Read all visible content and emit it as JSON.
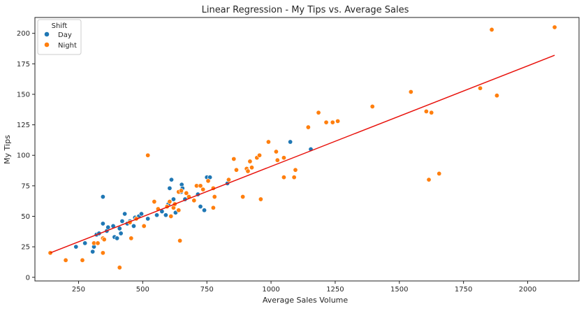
{
  "chart_data": {
    "type": "scatter",
    "title": "Linear Regression - My Tips vs. Average Sales",
    "xlabel": "Average Sales Volume",
    "ylabel": "My Tips",
    "xlim": [
      80,
      2200
    ],
    "ylim": [
      -3,
      213
    ],
    "xticks": [
      250,
      500,
      750,
      1000,
      1250,
      1500,
      1750,
      2000
    ],
    "yticks": [
      0,
      25,
      50,
      75,
      100,
      125,
      150,
      175,
      200
    ],
    "grid": false,
    "legend": {
      "title": "Shift",
      "position": "top-left"
    },
    "series": [
      {
        "name": "Day",
        "color": "#1f77b4",
        "points": [
          [
            240,
            25
          ],
          [
            275,
            28
          ],
          [
            305,
            21
          ],
          [
            310,
            25
          ],
          [
            320,
            35
          ],
          [
            330,
            36
          ],
          [
            345,
            66
          ],
          [
            345,
            44
          ],
          [
            360,
            38
          ],
          [
            365,
            41
          ],
          [
            385,
            42
          ],
          [
            390,
            33
          ],
          [
            400,
            32
          ],
          [
            410,
            40
          ],
          [
            415,
            36
          ],
          [
            420,
            46
          ],
          [
            430,
            52
          ],
          [
            440,
            44
          ],
          [
            450,
            46
          ],
          [
            465,
            42
          ],
          [
            470,
            49
          ],
          [
            485,
            50
          ],
          [
            495,
            52
          ],
          [
            520,
            48
          ],
          [
            555,
            51
          ],
          [
            575,
            54
          ],
          [
            590,
            51
          ],
          [
            600,
            60
          ],
          [
            605,
            73
          ],
          [
            612,
            80
          ],
          [
            620,
            64
          ],
          [
            628,
            53
          ],
          [
            640,
            55
          ],
          [
            650,
            70
          ],
          [
            652,
            76
          ],
          [
            655,
            73
          ],
          [
            665,
            64
          ],
          [
            715,
            68
          ],
          [
            725,
            58
          ],
          [
            740,
            55
          ],
          [
            750,
            82
          ],
          [
            762,
            82
          ],
          [
            830,
            77
          ],
          [
            1075,
            111
          ],
          [
            1155,
            105
          ]
        ]
      },
      {
        "name": "Night",
        "color": "#ff7f0e",
        "points": [
          [
            140,
            20
          ],
          [
            200,
            14
          ],
          [
            265,
            14
          ],
          [
            310,
            28
          ],
          [
            325,
            28
          ],
          [
            345,
            32
          ],
          [
            345,
            20
          ],
          [
            350,
            31
          ],
          [
            410,
            8
          ],
          [
            450,
            45
          ],
          [
            455,
            32
          ],
          [
            475,
            48
          ],
          [
            505,
            42
          ],
          [
            520,
            100
          ],
          [
            545,
            62
          ],
          [
            560,
            56
          ],
          [
            595,
            58
          ],
          [
            605,
            62
          ],
          [
            610,
            50
          ],
          [
            620,
            57
          ],
          [
            625,
            60
          ],
          [
            640,
            55
          ],
          [
            640,
            70
          ],
          [
            645,
            30
          ],
          [
            650,
            71
          ],
          [
            670,
            69
          ],
          [
            680,
            66
          ],
          [
            700,
            63
          ],
          [
            710,
            75
          ],
          [
            725,
            75
          ],
          [
            735,
            72
          ],
          [
            755,
            79
          ],
          [
            775,
            73
          ],
          [
            775,
            57
          ],
          [
            780,
            66
          ],
          [
            835,
            80
          ],
          [
            855,
            97
          ],
          [
            865,
            88
          ],
          [
            890,
            66
          ],
          [
            905,
            89
          ],
          [
            910,
            87
          ],
          [
            918,
            95
          ],
          [
            925,
            90
          ],
          [
            945,
            98
          ],
          [
            955,
            100
          ],
          [
            960,
            64
          ],
          [
            990,
            111
          ],
          [
            1020,
            103
          ],
          [
            1025,
            96
          ],
          [
            1050,
            98
          ],
          [
            1050,
            82
          ],
          [
            1090,
            82
          ],
          [
            1095,
            88
          ],
          [
            1145,
            123
          ],
          [
            1185,
            135
          ],
          [
            1215,
            127
          ],
          [
            1240,
            127
          ],
          [
            1260,
            128
          ],
          [
            1395,
            140
          ],
          [
            1545,
            152
          ],
          [
            1605,
            136
          ],
          [
            1615,
            80
          ],
          [
            1625,
            135
          ],
          [
            1655,
            85
          ],
          [
            1815,
            155
          ],
          [
            1860,
            203
          ],
          [
            1880,
            149
          ],
          [
            2105,
            205
          ]
        ]
      }
    ],
    "regression": {
      "color": "#e8120c",
      "x": [
        140,
        2105
      ],
      "y": [
        20,
        182
      ]
    }
  }
}
